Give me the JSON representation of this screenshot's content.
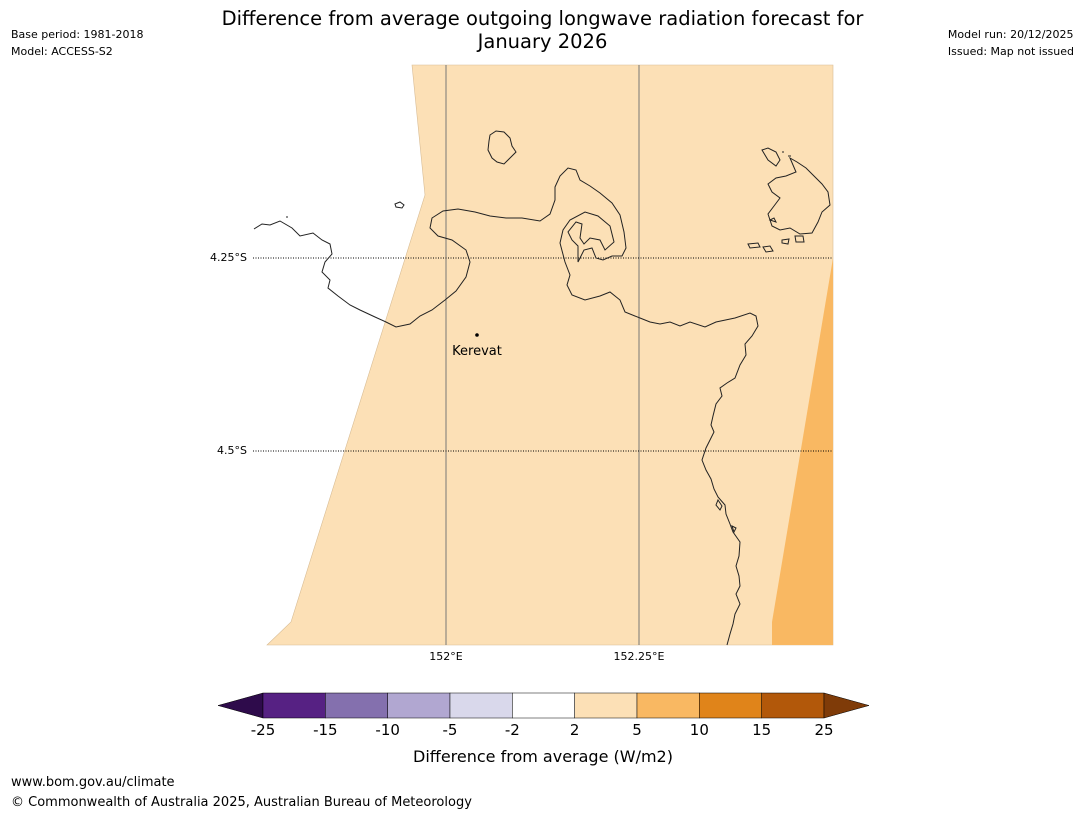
{
  "title_line1": "Difference from average outgoing longwave radiation forecast for",
  "title_line2": "January 2026",
  "meta_left": {
    "base_period": "Base period: 1981-2018",
    "model": "Model: ACCESS-S2"
  },
  "meta_right": {
    "model_run": "Model run: 20/12/2025",
    "issued": "Issued: Map not issued"
  },
  "map": {
    "lat_labels": [
      "4.25°S",
      "4.5°S"
    ],
    "lon_labels": [
      "152°E",
      "152.25°E"
    ],
    "place": "Kerevat",
    "colors": {
      "land_fill_2_5": "#fce0b6",
      "fill_5_10": "#f9b862",
      "coastline": "#222222"
    }
  },
  "colorbar": {
    "ticks": [
      "-25",
      "-15",
      "-10",
      "-5",
      "-2",
      "2",
      "5",
      "10",
      "15",
      "25"
    ],
    "colors": [
      "#562183",
      "#8470ae",
      "#b1a7d1",
      "#d9d8eb",
      "#ffffff",
      "#fce0b6",
      "#f9b862",
      "#e0841a",
      "#b2580a"
    ],
    "under_color": "#2e0b4b",
    "over_color": "#7f3b08",
    "label": "Difference from average (W/m2)"
  },
  "footer": {
    "url": "www.bom.gov.au/climate",
    "copyright": "© Commonwealth of Australia 2025, Australian Bureau of Meteorology"
  }
}
